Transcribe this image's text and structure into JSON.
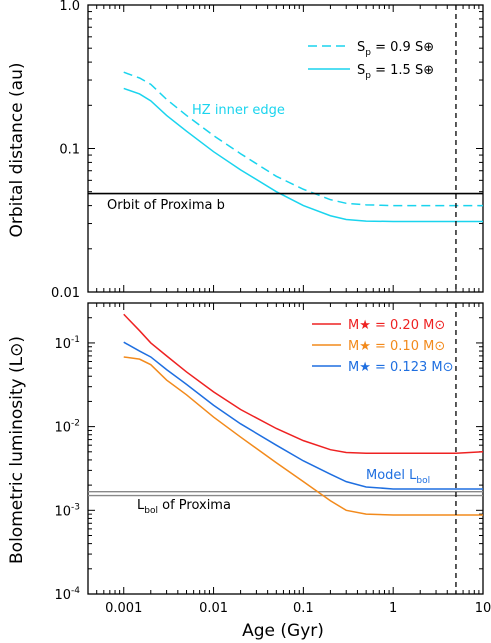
{
  "chart_data": [
    {
      "type": "line",
      "ylabel": "Orbital distance (au)",
      "xscale": "log",
      "yscale": "log",
      "xlim": [
        0.0004,
        10
      ],
      "ylim": [
        0.01,
        1.0
      ],
      "ytick_labels": [
        "0.01",
        "0.1",
        "1.0"
      ],
      "legend_placement": "top-right",
      "series": [
        {
          "name": "Sp = 0.9 S⊕",
          "color": "#1ad4ee",
          "dash": true,
          "x": [
            0.001,
            0.0015,
            0.002,
            0.003,
            0.005,
            0.01,
            0.02,
            0.05,
            0.1,
            0.2,
            0.3,
            0.5,
            1,
            2,
            5,
            10
          ],
          "y": [
            0.34,
            0.31,
            0.28,
            0.22,
            0.17,
            0.123,
            0.092,
            0.064,
            0.052,
            0.044,
            0.0415,
            0.0405,
            0.04,
            0.04,
            0.04,
            0.04
          ]
        },
        {
          "name": "Sp = 1.5 S⊕",
          "color": "#1ad4ee",
          "dash": false,
          "x": [
            0.001,
            0.0015,
            0.002,
            0.003,
            0.005,
            0.01,
            0.02,
            0.05,
            0.1,
            0.2,
            0.3,
            0.5,
            1,
            2,
            5,
            10
          ],
          "y": [
            0.262,
            0.24,
            0.215,
            0.17,
            0.132,
            0.095,
            0.071,
            0.05,
            0.04,
            0.034,
            0.032,
            0.0312,
            0.031,
            0.031,
            0.031,
            0.031
          ]
        },
        {
          "name": "Orbit of Proxima b",
          "color": "#000000",
          "dash": false,
          "x": [
            0.0004,
            10
          ],
          "y": [
            0.0485,
            0.0485
          ]
        }
      ],
      "annotations": [
        {
          "text": "HZ inner edge",
          "color": "#1ad4ee"
        },
        {
          "text": "Orbit of Proxima b",
          "color": "#000000"
        }
      ],
      "vline_x": 5.0
    },
    {
      "type": "line",
      "xlabel": "Age (Gyr)",
      "ylabel": "Bolometric luminosity (L⊙)",
      "xscale": "log",
      "yscale": "log",
      "xlim": [
        0.0004,
        10
      ],
      "ylim": [
        0.0001,
        0.3
      ],
      "xtick_labels": [
        "0.001",
        "0.01",
        "0.1",
        "1",
        "10"
      ],
      "ytick_labels": [
        "10-4",
        "10-3",
        "10-2",
        "10-1"
      ],
      "legend_placement": "top-right",
      "series": [
        {
          "name": "M★ = 0.20 M⊙",
          "color": "#ee2222",
          "x": [
            0.001,
            0.0015,
            0.002,
            0.003,
            0.005,
            0.01,
            0.02,
            0.05,
            0.1,
            0.2,
            0.3,
            0.5,
            1,
            2,
            5,
            10
          ],
          "y": [
            0.22,
            0.14,
            0.1,
            0.07,
            0.045,
            0.026,
            0.016,
            0.0095,
            0.0068,
            0.0053,
            0.0049,
            0.0048,
            0.0048,
            0.0048,
            0.0048,
            0.005
          ]
        },
        {
          "name": "M★ = 0.10 M⊙",
          "color": "#f28a1c",
          "x": [
            0.001,
            0.0015,
            0.002,
            0.003,
            0.005,
            0.01,
            0.02,
            0.05,
            0.1,
            0.2,
            0.3,
            0.5,
            1,
            2,
            5,
            10
          ],
          "y": [
            0.068,
            0.064,
            0.055,
            0.036,
            0.024,
            0.013,
            0.0075,
            0.0037,
            0.0022,
            0.0013,
            0.001,
            0.0009,
            0.00088,
            0.00088,
            0.00088,
            0.00088
          ]
        },
        {
          "name": "M★ = 0.123 M⊙",
          "color": "#1f6fe0",
          "x": [
            0.001,
            0.0015,
            0.002,
            0.003,
            0.005,
            0.01,
            0.02,
            0.05,
            0.1,
            0.2,
            0.3,
            0.5,
            1,
            2,
            5,
            10
          ],
          "y": [
            0.102,
            0.08,
            0.068,
            0.048,
            0.032,
            0.018,
            0.0108,
            0.006,
            0.0039,
            0.0027,
            0.0022,
            0.0019,
            0.0018,
            0.0018,
            0.0018,
            0.0018
          ]
        }
      ],
      "hbands": [
        {
          "y": 0.00167,
          "color": "#888888"
        },
        {
          "y": 0.0015,
          "color": "#888888"
        }
      ],
      "annotations": [
        {
          "text": "Model Lbol",
          "color": "#1f6fe0"
        },
        {
          "text": "Lbol of Proxima",
          "color": "#000000"
        }
      ],
      "vline_x": 5.0
    }
  ]
}
